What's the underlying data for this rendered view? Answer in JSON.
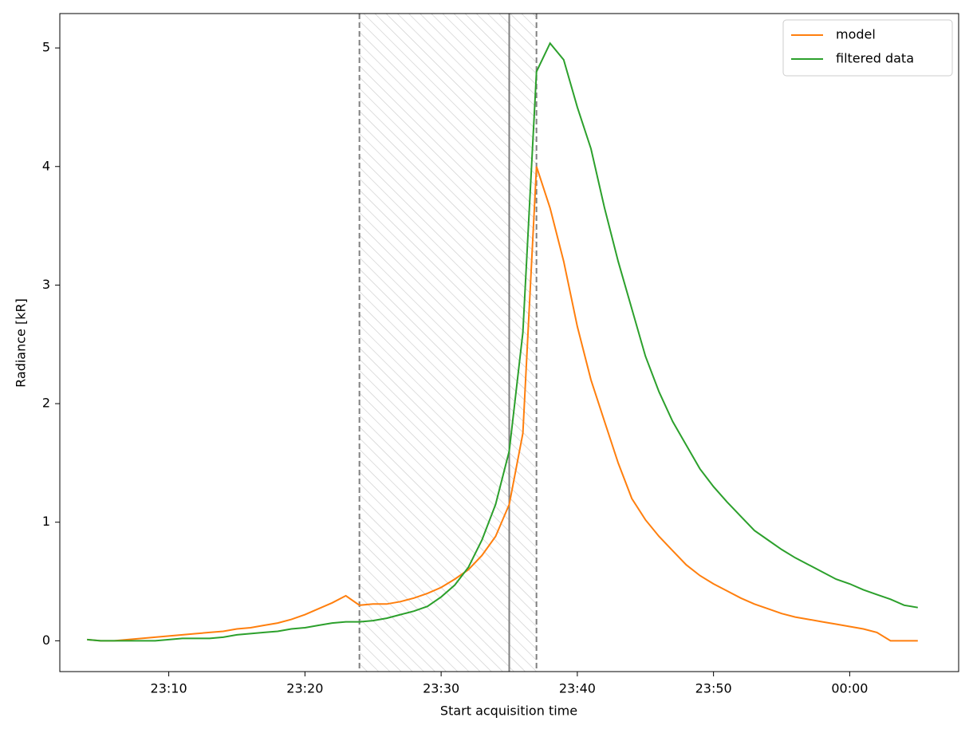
{
  "chart_data": {
    "type": "line",
    "xlabel": "Start acquisition time",
    "ylabel": "Radiance [kR]",
    "x": [
      "23:04",
      "23:05",
      "23:06",
      "23:07",
      "23:08",
      "23:09",
      "23:10",
      "23:11",
      "23:12",
      "23:13",
      "23:14",
      "23:15",
      "23:16",
      "23:17",
      "23:18",
      "23:19",
      "23:20",
      "23:21",
      "23:22",
      "23:23",
      "23:24",
      "23:25",
      "23:26",
      "23:27",
      "23:28",
      "23:29",
      "23:30",
      "23:31",
      "23:32",
      "23:33",
      "23:34",
      "23:35",
      "23:36",
      "23:37",
      "23:38",
      "23:39",
      "23:40",
      "23:41",
      "23:42",
      "23:43",
      "23:44",
      "23:45",
      "23:46",
      "23:47",
      "23:48",
      "23:49",
      "23:50",
      "23:51",
      "23:52",
      "23:53",
      "23:54",
      "23:55",
      "23:56",
      "23:57",
      "23:58",
      "23:59",
      "00:00",
      "00:01",
      "00:02",
      "00:03",
      "00:04",
      "00:05"
    ],
    "series": [
      {
        "name": "model",
        "color": "#ff7f0e",
        "values": [
          0.01,
          0,
          0,
          0.01,
          0.02,
          0.03,
          0.04,
          0.05,
          0.06,
          0.07,
          0.08,
          0.1,
          0.11,
          0.13,
          0.15,
          0.18,
          0.22,
          0.27,
          0.32,
          0.38,
          0.3,
          0.31,
          0.31,
          0.33,
          0.36,
          0.4,
          0.45,
          0.52,
          0.6,
          0.72,
          0.88,
          1.15,
          1.75,
          4.0,
          3.65,
          3.2,
          2.65,
          2.2,
          1.85,
          1.5,
          1.2,
          1.02,
          0.88,
          0.76,
          0.64,
          0.55,
          0.48,
          0.42,
          0.36,
          0.31,
          0.27,
          0.23,
          0.2,
          0.18,
          0.16,
          0.14,
          0.12,
          0.1,
          0.07,
          0,
          0,
          0
        ]
      },
      {
        "name": "filtered data",
        "color": "#2ca02c",
        "values": [
          0.01,
          0,
          0,
          0,
          0,
          0,
          0.01,
          0.02,
          0.02,
          0.02,
          0.03,
          0.05,
          0.06,
          0.07,
          0.08,
          0.1,
          0.11,
          0.13,
          0.15,
          0.16,
          0.16,
          0.17,
          0.19,
          0.22,
          0.25,
          0.29,
          0.37,
          0.47,
          0.62,
          0.85,
          1.15,
          1.6,
          2.6,
          4.8,
          5.04,
          4.9,
          4.5,
          4.15,
          3.65,
          3.2,
          2.8,
          2.4,
          2.1,
          1.85,
          1.65,
          1.45,
          1.3,
          1.17,
          1.05,
          0.93,
          0.85,
          0.77,
          0.7,
          0.64,
          0.58,
          0.52,
          0.48,
          0.43,
          0.39,
          0.35,
          0.3,
          0.28
        ]
      }
    ],
    "shaded_span": [
      "23:24",
      "23:37"
    ],
    "span_color": "#808080",
    "vline": "23:35",
    "xlim": [
      "23:02",
      "00:08"
    ],
    "xticks": [
      "23:10",
      "23:20",
      "23:30",
      "23:40",
      "23:50",
      "00:00"
    ],
    "ylim": [
      -0.26,
      5.29
    ],
    "yticks": [
      0,
      1,
      2,
      3,
      4,
      5
    ],
    "grid": false,
    "legend": "upper right"
  }
}
